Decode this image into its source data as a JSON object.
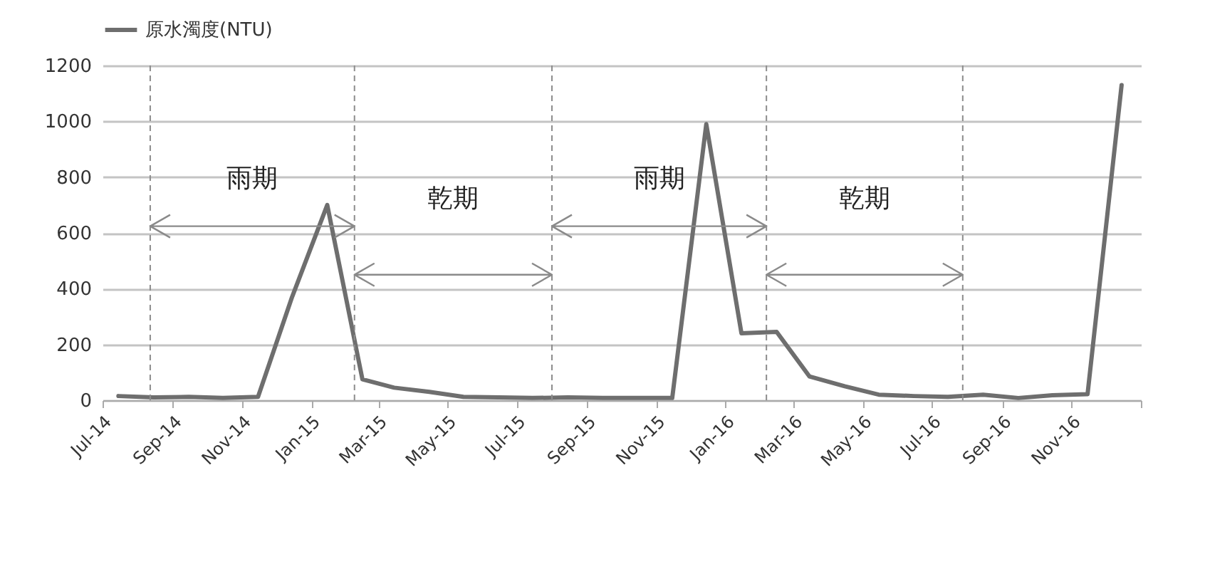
{
  "chart_data": {
    "type": "line",
    "x": [
      "2014-07-15",
      "2014-08-15",
      "2014-09-15",
      "2014-10-15",
      "2014-11-15",
      "2014-12-15",
      "2015-01-15",
      "2015-02-15",
      "2015-03-15",
      "2015-04-15",
      "2015-05-15",
      "2015-06-15",
      "2015-07-15",
      "2015-08-15",
      "2015-09-15",
      "2015-10-15",
      "2015-11-15",
      "2015-12-15",
      "2016-01-15",
      "2016-02-15",
      "2016-03-15",
      "2016-04-15",
      "2016-05-15",
      "2016-06-15",
      "2016-07-15",
      "2016-08-15",
      "2016-09-15",
      "2016-10-15",
      "2016-11-15",
      "2016-12-15"
    ],
    "series": [
      {
        "name": "原水濁度(NTU)",
        "color": "#6e6e6e",
        "values": [
          15,
          10,
          12,
          8,
          12,
          370,
          700,
          75,
          45,
          30,
          12,
          10,
          8,
          10,
          8,
          8,
          8,
          990,
          240,
          245,
          85,
          50,
          20,
          15,
          12,
          20,
          8,
          18,
          22,
          1130
        ]
      }
    ],
    "xlim": [
      "2014-07",
      "2017-01"
    ],
    "xticks": [
      {
        "value": "2014-07",
        "label": "Jul-14"
      },
      {
        "value": "2014-09",
        "label": "Sep-14"
      },
      {
        "value": "2014-11",
        "label": "Nov-14"
      },
      {
        "value": "2015-01",
        "label": "Jan-15"
      },
      {
        "value": "2015-03",
        "label": "Mar-15"
      },
      {
        "value": "2015-05",
        "label": "May-15"
      },
      {
        "value": "2015-07",
        "label": "Jul-15"
      },
      {
        "value": "2015-09",
        "label": "Sep-15"
      },
      {
        "value": "2015-11",
        "label": "Nov-15"
      },
      {
        "value": "2016-01",
        "label": "Jan-16"
      },
      {
        "value": "2016-03",
        "label": "Mar-16"
      },
      {
        "value": "2016-05",
        "label": "May-16"
      },
      {
        "value": "2016-07",
        "label": "Jul-16"
      },
      {
        "value": "2016-09",
        "label": "Sep-16"
      },
      {
        "value": "2016-11",
        "label": "Nov-16"
      },
      {
        "value": "2017-01",
        "label": null
      }
    ],
    "ylim": [
      0,
      1200
    ],
    "yticks": [
      0,
      200,
      400,
      600,
      800,
      1000,
      1200
    ],
    "ref_lines": [
      {
        "axis": "x",
        "value": "2014-08-12",
        "color": "#8c8c8c",
        "line_style": "dashed"
      },
      {
        "axis": "x",
        "value": "2015-02-08",
        "color": "#8c8c8c",
        "line_style": "dashed"
      },
      {
        "axis": "x",
        "value": "2015-08-01",
        "color": "#8c8c8c",
        "line_style": "dashed"
      },
      {
        "axis": "x",
        "value": "2016-02-06",
        "color": "#8c8c8c",
        "line_style": "dashed"
      },
      {
        "axis": "x",
        "value": "2016-07-28",
        "color": "#8c8c8c",
        "line_style": "dashed"
      }
    ],
    "annotations": [
      "雨期",
      "乾期",
      "雨期",
      "乾期"
    ],
    "grid": "y",
    "legend": "top",
    "marker": "none",
    "line_style": "solid"
  }
}
